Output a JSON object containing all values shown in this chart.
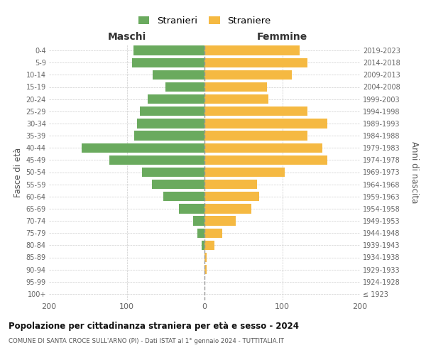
{
  "age_groups": [
    "100+",
    "95-99",
    "90-94",
    "85-89",
    "80-84",
    "75-79",
    "70-74",
    "65-69",
    "60-64",
    "55-59",
    "50-54",
    "45-49",
    "40-44",
    "35-39",
    "30-34",
    "25-29",
    "20-24",
    "15-19",
    "10-14",
    "5-9",
    "0-4"
  ],
  "birth_years": [
    "≤ 1923",
    "1924-1928",
    "1929-1933",
    "1934-1938",
    "1939-1943",
    "1944-1948",
    "1949-1953",
    "1954-1958",
    "1959-1963",
    "1964-1968",
    "1969-1973",
    "1974-1978",
    "1979-1983",
    "1984-1988",
    "1989-1993",
    "1994-1998",
    "1999-2003",
    "2004-2008",
    "2009-2013",
    "2014-2018",
    "2019-2023"
  ],
  "males": [
    0,
    0,
    0,
    0,
    4,
    9,
    15,
    33,
    53,
    68,
    80,
    122,
    158,
    90,
    87,
    83,
    73,
    50,
    67,
    93,
    91
  ],
  "females": [
    0,
    0,
    3,
    3,
    13,
    23,
    40,
    60,
    70,
    68,
    103,
    158,
    152,
    132,
    158,
    132,
    82,
    80,
    112,
    132,
    122
  ],
  "male_color": "#6aaa5e",
  "female_color": "#f5b942",
  "background_color": "#ffffff",
  "grid_color": "#cccccc",
  "title": "Popolazione per cittadinanza straniera per età e sesso - 2024",
  "subtitle": "COMUNE DI SANTA CROCE SULL'ARNO (PI) - Dati ISTAT al 1° gennaio 2024 - TUTTITALIA.IT",
  "left_header": "Maschi",
  "right_header": "Femmine",
  "y_left_label": "Fasce di età",
  "y_right_label": "Anni di nascita",
  "legend_male": "Stranieri",
  "legend_female": "Straniere",
  "xlim": 200,
  "xticks": [
    -200,
    -100,
    0,
    100,
    200
  ],
  "xticklabels": [
    "200",
    "100",
    "0",
    "100",
    "200"
  ]
}
